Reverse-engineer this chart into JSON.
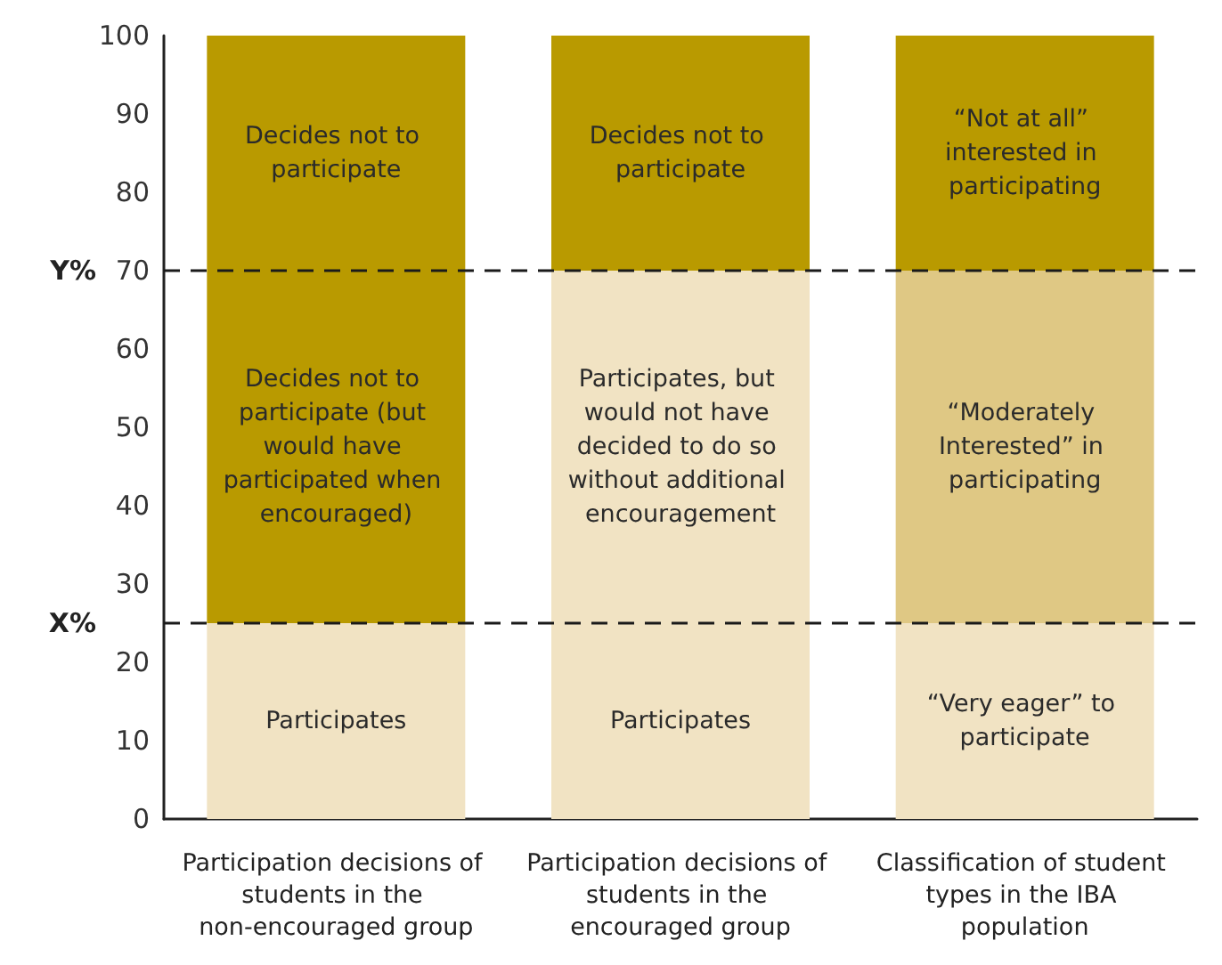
{
  "chart_data": {
    "type": "bar",
    "stacked": true,
    "grid": false,
    "categories": [
      "Participation decisions of students in the non-encouraged group",
      "Participation decisions of students in the encouraged group",
      "Classification of student types in the IBA population"
    ],
    "series": [
      {
        "colors": [
          "#f1e3c3",
          "#f1e3c3",
          "#f1e3c3"
        ],
        "values": [
          25,
          25,
          25
        ],
        "value_labels": [
          "Participates",
          "Participates",
          "“Very eager” to participate"
        ]
      },
      {
        "colors": [
          "#b99a00",
          "#f1e3c3",
          "#dfc884"
        ],
        "values": [
          45,
          45,
          45
        ],
        "value_labels": [
          "Decides not to participate (but would have participated when encouraged)",
          "Participates, but would not have decided to do so without additional encouragement",
          "“Moderately Interested” in participating"
        ]
      },
      {
        "colors": [
          "#b99a00",
          "#b99a00",
          "#b99a00"
        ],
        "values": [
          30,
          30,
          30
        ],
        "value_labels": [
          "Decides not to participate",
          "Decides not to participate",
          "“Not at all” interested in participating"
        ]
      }
    ],
    "ylim": [
      0,
      100
    ],
    "yticks": [
      0,
      10,
      20,
      30,
      40,
      50,
      60,
      70,
      80,
      90,
      100
    ],
    "ref_lines": [
      {
        "axis": "y",
        "value": 70,
        "label": "Y%",
        "line_style": "dashed",
        "color": "#1a1a1a"
      },
      {
        "axis": "y",
        "value": 25,
        "label": "X%",
        "line_style": "dashed",
        "color": "#1a1a1a"
      }
    ]
  }
}
